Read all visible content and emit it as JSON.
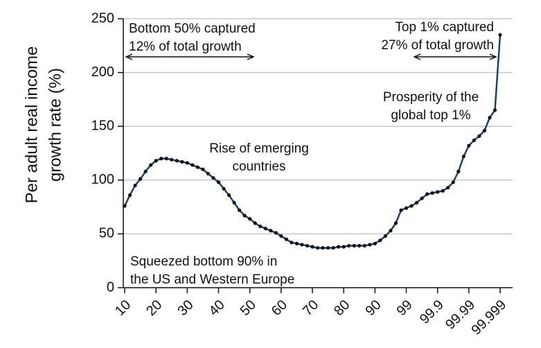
{
  "chart_data": {
    "type": "line",
    "ylabel": [
      "Per adult real income",
      "growth rate (%)"
    ],
    "categories": [
      "10",
      null,
      null,
      null,
      null,
      null,
      "20",
      null,
      null,
      null,
      null,
      null,
      "30",
      null,
      null,
      null,
      null,
      null,
      "40",
      null,
      null,
      null,
      null,
      null,
      "50",
      null,
      null,
      null,
      null,
      null,
      "60",
      null,
      null,
      null,
      null,
      null,
      "70",
      null,
      null,
      null,
      null,
      null,
      "80",
      null,
      null,
      null,
      null,
      null,
      "90",
      null,
      null,
      null,
      null,
      null,
      "99",
      null,
      null,
      null,
      null,
      null,
      "99.9",
      null,
      null,
      null,
      null,
      null,
      "99.99",
      null,
      null,
      null,
      null,
      null,
      "99.999"
    ],
    "values": [
      76,
      86,
      95,
      101,
      108,
      114,
      118,
      120,
      120,
      119,
      118,
      117,
      116,
      114,
      112,
      110,
      106,
      102,
      98,
      92,
      86,
      79,
      72,
      67,
      64,
      60,
      57,
      55,
      53,
      51,
      48,
      45,
      42,
      41,
      40,
      39,
      38,
      37,
      37,
      37,
      37,
      38,
      38,
      39,
      39,
      39,
      39,
      40,
      41,
      44,
      48,
      53,
      60,
      72,
      74,
      76,
      79,
      83,
      87,
      88,
      89,
      90,
      93,
      98,
      108,
      122,
      132,
      137,
      141,
      146,
      158,
      165,
      235
    ],
    "color": "#1f4266",
    "marker_color": "#111111",
    "ylim": [
      0,
      250
    ],
    "yticks": [
      0,
      50,
      100,
      150,
      200,
      250
    ],
    "grid": true,
    "annotations": [
      {
        "lines": [
          "Bottom 50% captured",
          "12% of total growth"
        ]
      },
      {
        "lines": [
          "Top 1% captured",
          "27% of total growth"
        ]
      },
      {
        "lines": [
          "Prosperity of the",
          "global top 1%"
        ]
      },
      {
        "lines": [
          "Rise of emerging",
          "countries"
        ]
      },
      {
        "lines": [
          "Squeezed bottom 90% in",
          "the US and Western Europe"
        ]
      }
    ]
  }
}
